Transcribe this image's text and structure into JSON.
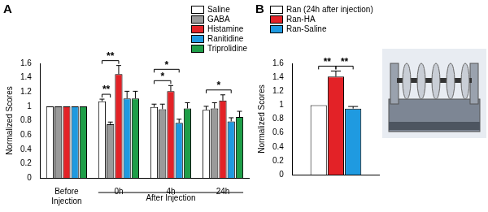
{
  "chart_data": [
    {
      "type": "bar",
      "title": "A",
      "y_label": "Normalized Scores",
      "categories": [
        "Before Injection",
        "0h",
        "4h",
        "24h"
      ],
      "series": [
        {
          "name": "Saline",
          "color": "#ffffff",
          "values": [
            1.0,
            1.07,
            0.99,
            0.95
          ],
          "errors": [
            0,
            0.03,
            0.04,
            0.05
          ]
        },
        {
          "name": "GABA",
          "color": "#9a9a9a",
          "values": [
            1.0,
            0.75,
            0.96,
            0.97
          ],
          "errors": [
            0,
            0.03,
            0.07,
            0.08
          ]
        },
        {
          "name": "Histamine",
          "color": "#e32227",
          "values": [
            1.0,
            1.45,
            1.21,
            1.08
          ],
          "errors": [
            0,
            0.12,
            0.08,
            0.08
          ]
        },
        {
          "name": "Ranitidine",
          "color": "#1f9ae0",
          "values": [
            1.0,
            1.11,
            0.77,
            0.79
          ],
          "errors": [
            0,
            0.1,
            0.05,
            0.05
          ]
        },
        {
          "name": "Triprolidine",
          "color": "#1f9e48",
          "values": [
            1.0,
            1.11,
            0.97,
            0.85
          ],
          "errors": [
            0,
            0.1,
            0.08,
            0.08
          ]
        }
      ],
      "ylim": [
        0,
        1.6
      ],
      "yticks": [
        0,
        0.2,
        0.4,
        0.6,
        0.8,
        1,
        1.2,
        1.4,
        1.6
      ],
      "grid": false,
      "legend": "top-right",
      "group_labels": [
        {
          "text": "After Injection",
          "from": "0h",
          "to": "24h"
        }
      ],
      "annotations": [
        {
          "category": "0h",
          "from": "Saline",
          "to": "GABA",
          "text": "**"
        },
        {
          "category": "0h",
          "from": "Saline",
          "to": "Histamine",
          "text": "**"
        },
        {
          "category": "4h",
          "from": "Saline",
          "to": "Histamine",
          "text": "*"
        },
        {
          "category": "4h",
          "from": "Saline",
          "to": "Ranitidine",
          "text": "*"
        },
        {
          "category": "24h",
          "from": "Saline",
          "to": "Ranitidine",
          "text": "*"
        }
      ]
    },
    {
      "type": "bar",
      "title": "B",
      "y_label": "Normalized Scores",
      "categories": [
        null
      ],
      "series": [
        {
          "name": "Ran (24h after injection)",
          "color": "#ffffff",
          "values": [
            1.0
          ],
          "errors": [
            0
          ]
        },
        {
          "name": "Ran-HA",
          "color": "#e32227",
          "values": [
            1.41
          ],
          "errors": [
            0.08
          ]
        },
        {
          "name": "Ran-Saline",
          "color": "#1f9ae0",
          "values": [
            0.95
          ],
          "errors": [
            0.03
          ]
        }
      ],
      "ylim": [
        0,
        1.6
      ],
      "yticks": [
        0,
        0.2,
        0.4,
        0.6,
        0.8,
        1,
        1.2,
        1.4,
        1.6
      ],
      "grid": false,
      "legend": "top-left",
      "annotations": [
        {
          "from": "Ran (24h after injection)",
          "to": "Ran-HA",
          "text": "**"
        },
        {
          "from": "Ran-HA",
          "to": "Ran-Saline",
          "text": "**"
        }
      ]
    }
  ]
}
